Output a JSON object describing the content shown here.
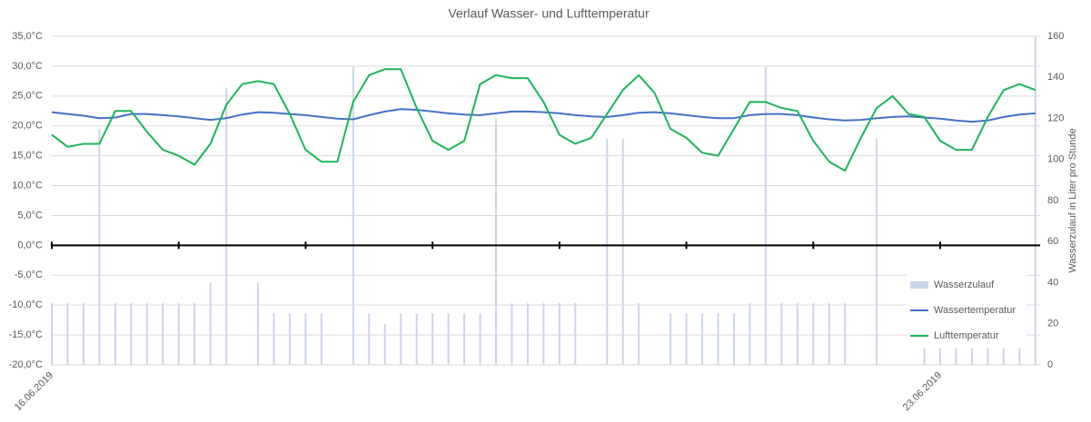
{
  "chart_data": {
    "type": "bar-line",
    "title": "Verlauf Wasser- und Lufttemperatur",
    "y2_label": "Wasserzulauf in Liter pro Stunde",
    "categories": [
      "16.06.2019",
      null,
      null,
      null,
      null,
      null,
      null,
      null,
      null,
      null,
      null,
      null,
      null,
      null,
      null,
      null,
      null,
      null,
      null,
      null,
      null,
      null,
      null,
      null,
      null,
      null,
      null,
      null,
      null,
      null,
      null,
      null,
      null,
      null,
      null,
      null,
      null,
      null,
      null,
      null,
      null,
      null,
      null,
      null,
      null,
      null,
      null,
      null,
      null,
      null,
      null,
      null,
      null,
      null,
      null,
      null,
      "23.06.2019",
      null,
      null,
      null,
      null,
      null,
      null
    ],
    "series": [
      {
        "name": "Wasserzulauf",
        "type": "bar",
        "axis": "y2",
        "color": "#c9d6e8",
        "values": [
          30,
          30,
          30,
          115,
          30,
          30,
          30,
          30,
          30,
          30,
          40,
          135,
          0,
          40,
          25,
          25,
          25,
          25,
          0,
          145,
          25,
          20,
          25,
          25,
          25,
          25,
          25,
          25,
          120,
          30,
          30,
          30,
          30,
          30,
          0,
          110,
          110,
          30,
          0,
          25,
          25,
          25,
          25,
          25,
          30,
          145,
          30,
          30,
          30,
          30,
          30,
          0,
          110,
          0,
          0,
          8,
          8,
          8,
          8,
          8,
          8,
          8,
          160
        ]
      },
      {
        "name": "Wassertemperatur",
        "type": "line",
        "color": "#4472c4",
        "values": [
          22.3,
          22,
          21.7,
          21.3,
          21.4,
          22,
          22,
          21.8,
          21.6,
          21.3,
          21.0,
          21.3,
          21.9,
          22.3,
          22.2,
          22,
          21.8,
          21.5,
          21.2,
          21.1,
          21.8,
          22.4,
          22.8,
          22.7,
          22.4,
          22.1,
          21.9,
          21.8,
          22.1,
          22.4,
          22.4,
          22.3,
          22.1,
          21.8,
          21.6,
          21.5,
          21.8,
          22.2,
          22.3,
          22.1,
          21.8,
          21.5,
          21.3,
          21.3,
          21.8,
          22,
          22,
          21.8,
          21.4,
          21.1,
          20.9,
          21,
          21.3,
          21.5,
          21.6,
          21.4,
          21.2,
          20.9,
          20.7,
          20.9,
          21.5,
          21.9,
          22.1
        ]
      },
      {
        "name": "Lufttemperatur",
        "type": "line",
        "color": "#1fb35a",
        "values": [
          18.5,
          16.5,
          17,
          17,
          22.5,
          22.5,
          19,
          16,
          15,
          13.5,
          17,
          23.5,
          27,
          27.5,
          27,
          22,
          16,
          14,
          14,
          24,
          28.5,
          29.5,
          29.5,
          23,
          17.5,
          16,
          17.5,
          27,
          28.5,
          28,
          28,
          24,
          18.5,
          17,
          18,
          22,
          26,
          28.5,
          25.5,
          19.5,
          18,
          15.5,
          15,
          19.5,
          24,
          24,
          23,
          22.5,
          17.5,
          14,
          12.5,
          18,
          23,
          25,
          22,
          21.5,
          17.5,
          16,
          16,
          21.5,
          26,
          27,
          26
        ]
      }
    ],
    "ylim": [
      -20,
      35
    ],
    "yticks": [
      {
        "value": -20,
        "label": "-20,0°C"
      },
      {
        "value": -15,
        "label": "-15,0°C"
      },
      {
        "value": -10,
        "label": "-10,0°C"
      },
      {
        "value": -5,
        "label": "-5,0°C"
      },
      {
        "value": 0,
        "label": "0,0°C"
      },
      {
        "value": 5,
        "label": "5,0°C"
      },
      {
        "value": 10,
        "label": "10,0°C"
      },
      {
        "value": 15,
        "label": "15,0°C"
      },
      {
        "value": 20,
        "label": "20,0°C"
      },
      {
        "value": 25,
        "label": "25,0°C"
      },
      {
        "value": 30,
        "label": "30,0°C"
      },
      {
        "value": 35,
        "label": "35,0°C"
      }
    ],
    "y2lim": [
      0,
      160
    ],
    "y2ticks": [
      0,
      20,
      40,
      60,
      80,
      100,
      120,
      140,
      160
    ],
    "grid": true,
    "legend": "lower right"
  }
}
